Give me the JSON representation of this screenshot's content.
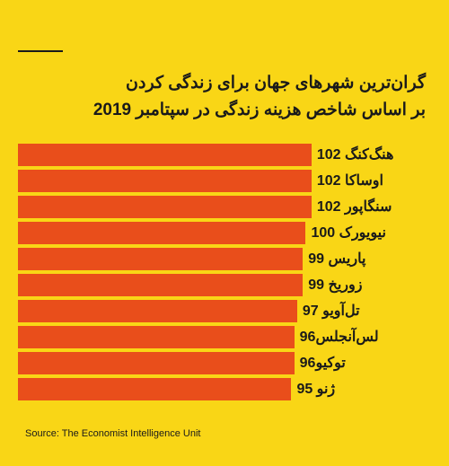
{
  "chart": {
    "type": "bar",
    "background_color": "#f9d616",
    "bar_color": "#e94e1b",
    "text_color": "#1a1a1a",
    "divider_color": "#1a1a1a",
    "inner_bg": "#f9d616",
    "title_line1": "گران‌ترین شهرهای جهان برای زندگی کردن",
    "title_line2": "بر اساس شاخص هزینه زندگی در سپتامبر 2019",
    "title_fontsize": 19,
    "label_fontsize": 16,
    "max_value": 102,
    "bars": [
      {
        "label": "هنگ‌کنگ 102",
        "value": 102
      },
      {
        "label": "اوساکا 102",
        "value": 102
      },
      {
        "label": "سنگاپور 102",
        "value": 102
      },
      {
        "label": "نیویورک 100",
        "value": 100
      },
      {
        "label": "پاریس 99",
        "value": 99
      },
      {
        "label": "زوریخ 99",
        "value": 99
      },
      {
        "label": "تل‌آویو 97",
        "value": 97
      },
      {
        "label": "لس‌آنجلس96",
        "value": 96
      },
      {
        "label": "توکیو96",
        "value": 96
      },
      {
        "label": "ژنو 95",
        "value": 95
      }
    ],
    "source": "Source: The Economist Intelligence Unit"
  }
}
